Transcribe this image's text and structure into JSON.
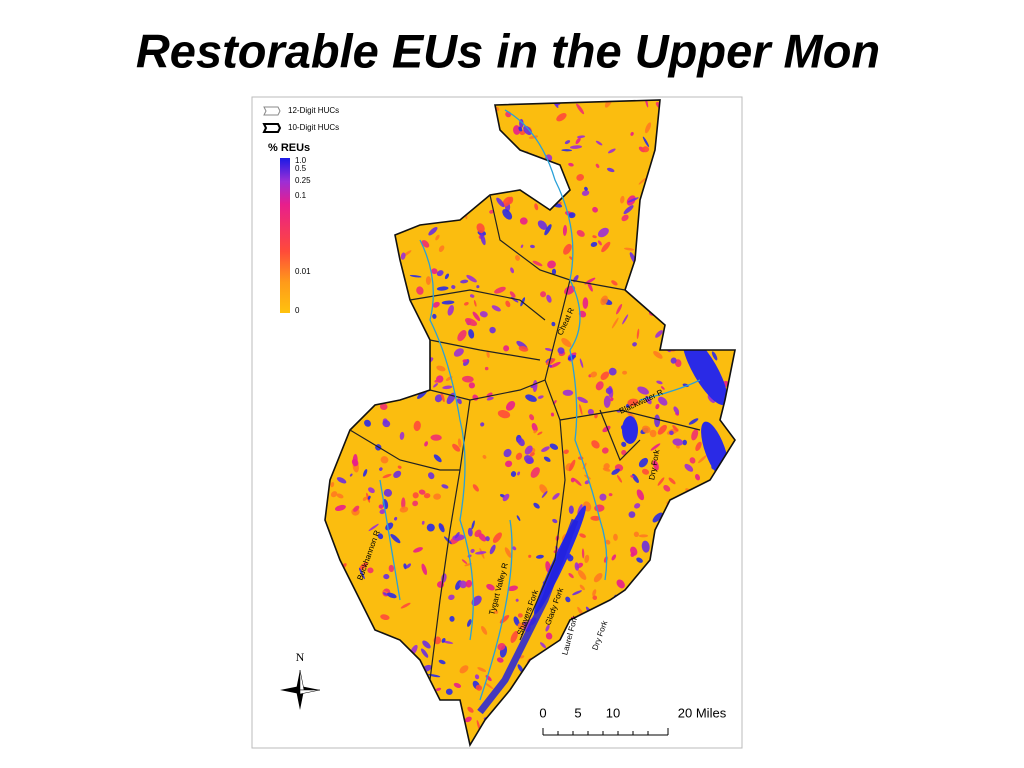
{
  "header": {
    "title": "Restorable EUs in the Upper Mon"
  },
  "legend": {
    "boundaries": [
      "12-Digit HUCs",
      "10-Digit HUCs"
    ],
    "title": "% REUs",
    "ticks": [
      "1.0",
      "0.5",
      "0.25",
      "0.1",
      "0.01",
      "0"
    ]
  },
  "rivers": [
    "Cheat R",
    "Blackwater R",
    "Dry Fork",
    "Buckhannon R",
    "Tygart Valley R",
    "Shavers Fork",
    "Glady Fork",
    "Laurel Fork",
    "Dry Fork"
  ],
  "north": "N",
  "scale": [
    "0",
    "5",
    "10",
    "20 Miles"
  ]
}
